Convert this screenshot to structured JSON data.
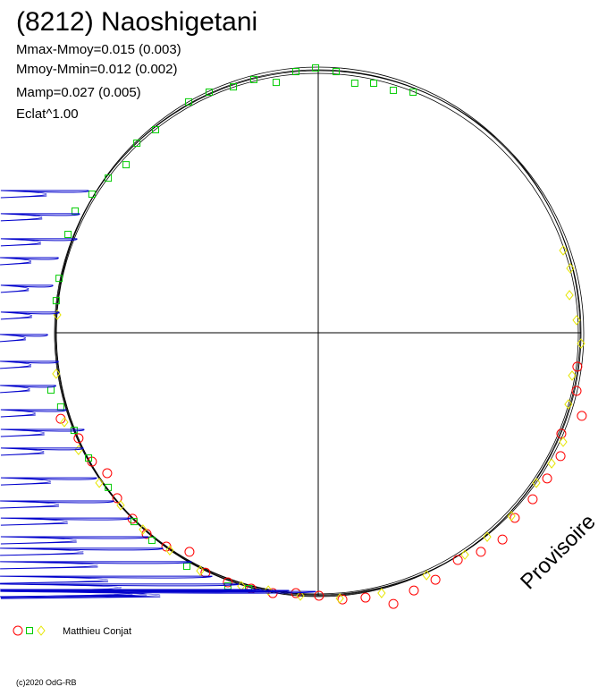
{
  "chart_data": {
    "type": "polar-scatter",
    "title": "(8212) Naoshigetani",
    "stats": [
      "Mmax-Mmoy=0.015 (0.003)",
      "Mmoy-Mmin=0.012 (0.002)",
      "Mamp=0.027 (0.005)",
      "Eclat^1.00"
    ],
    "watermark": "Provisoire",
    "legend_label": "Matthieu Conjat",
    "copyright": "(c)2020 OdG-RB",
    "xlim": [
      -1.1,
      1.1
    ],
    "ylim": [
      -1.1,
      1.1
    ],
    "series": [
      {
        "marker": "circle",
        "color": "#ff0000",
        "x": [
          -0.98,
          -0.912,
          -0.861,
          -0.803,
          -0.765,
          -0.707,
          -0.653,
          -0.578,
          -0.49,
          -0.429,
          -0.344,
          -0.255,
          -0.173,
          -0.085,
          0.003,
          0.092,
          0.18,
          0.286,
          0.364,
          0.446,
          0.531,
          0.619,
          0.701,
          0.748,
          0.816,
          0.871,
          0.922,
          0.925,
          1.003,
          0.983,
          0.986
        ],
        "y": [
          -0.327,
          -0.401,
          -0.49,
          -0.534,
          -0.629,
          -0.707,
          -0.765,
          -0.813,
          -0.833,
          -0.912,
          -0.949,
          -0.973,
          -0.99,
          -0.99,
          -1.0,
          -1.014,
          -1.007,
          -1.031,
          -0.98,
          -0.939,
          -0.864,
          -0.833,
          -0.786,
          -0.704,
          -0.633,
          -0.554,
          -0.469,
          -0.384,
          -0.316,
          -0.221,
          -0.129
        ]
      },
      {
        "marker": "square",
        "color": "#00cc00",
        "x": [
          -0.01,
          -0.085,
          0.068,
          0.139,
          0.211,
          0.286,
          0.361,
          -0.16,
          -0.245,
          -0.323,
          -0.415,
          -0.493,
          -0.619,
          -0.69,
          -0.731,
          -0.799,
          -0.861,
          -0.925,
          -0.952,
          -0.986,
          -0.997,
          -1.017,
          -0.98,
          -0.929,
          -0.874,
          -0.799,
          -0.701,
          -0.633,
          -0.5,
          -0.344,
          -0.265
        ],
        "y": [
          1.007,
          0.993,
          0.993,
          0.949,
          0.949,
          0.922,
          0.915,
          0.952,
          0.963,
          0.935,
          0.915,
          0.878,
          0.772,
          0.721,
          0.639,
          0.588,
          0.527,
          0.463,
          0.374,
          0.207,
          0.122,
          -0.218,
          -0.282,
          -0.371,
          -0.476,
          -0.588,
          -0.718,
          -0.789,
          -0.888,
          -0.963,
          -0.973
        ]
      },
      {
        "marker": "diamond",
        "color": "#e6e600",
        "x": [
          0.932,
          0.959,
          0.956,
          0.983,
          1.0,
          0.966,
          0.952,
          0.932,
          0.888,
          0.83,
          0.735,
          0.643,
          0.558,
          0.412,
          0.241,
          0.082,
          -0.068,
          -0.19,
          -0.293,
          -0.449,
          -0.565,
          -0.667,
          -0.752,
          -0.833,
          -0.912,
          -0.966,
          -0.997,
          -0.993
        ],
        "y": [
          0.313,
          0.245,
          0.143,
          0.048,
          -0.041,
          -0.163,
          -0.272,
          -0.415,
          -0.497,
          -0.571,
          -0.697,
          -0.776,
          -0.844,
          -0.922,
          -0.99,
          -1.01,
          -1.0,
          -0.98,
          -0.963,
          -0.905,
          -0.827,
          -0.748,
          -0.656,
          -0.571,
          -0.446,
          -0.34,
          -0.156,
          0.068
        ]
      },
      {
        "marker": "star",
        "color": "#0000cc",
        "x": [
          -0.861,
          -0.895,
          -0.905,
          -0.976,
          -0.997,
          -0.973,
          -1.017,
          -0.976,
          -0.986,
          -0.946,
          -0.878,
          -0.881,
          -0.83,
          -0.765,
          -0.701,
          -0.633,
          -0.578,
          -0.469,
          -0.391,
          -0.289,
          -0.204,
          -0.099,
          0.003
        ],
        "y": [
          0.527,
          0.439,
          0.344,
          0.272,
          0.167,
          0.065,
          -0.02,
          -0.122,
          -0.214,
          -0.306,
          -0.381,
          -0.452,
          -0.565,
          -0.653,
          -0.718,
          -0.789,
          -0.833,
          -0.884,
          -0.939,
          -0.969,
          -0.99,
          -0.993,
          -0.997
        ]
      }
    ]
  }
}
